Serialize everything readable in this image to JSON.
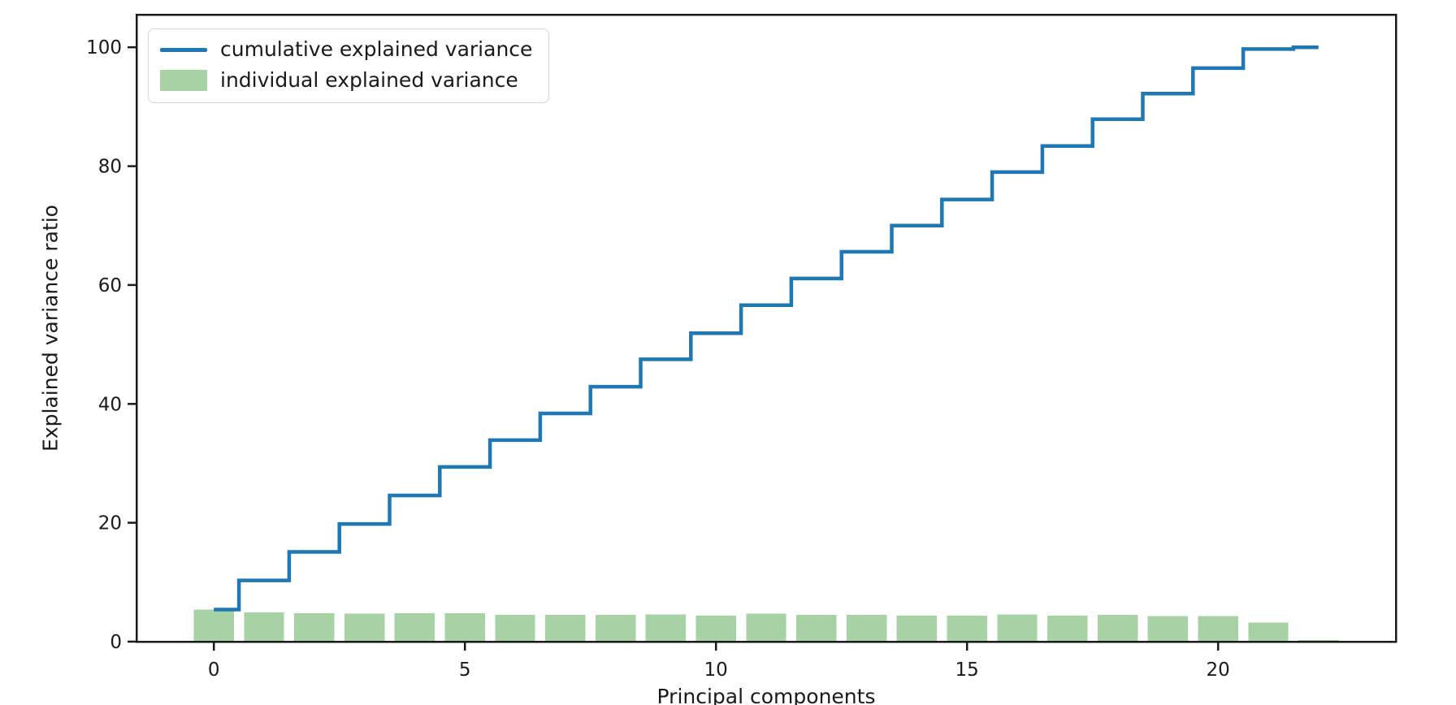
{
  "chart_data": {
    "type": "bar+line",
    "x": [
      0,
      1,
      2,
      3,
      4,
      5,
      6,
      7,
      8,
      9,
      10,
      11,
      12,
      13,
      14,
      15,
      16,
      17,
      18,
      19,
      20,
      21,
      22
    ],
    "series": [
      {
        "name": "cumulative explained variance",
        "type": "line",
        "style": "step-mid",
        "color": "#1f77b4",
        "values": [
          5.4,
          10.3,
          15.1,
          19.8,
          24.6,
          29.4,
          33.9,
          38.4,
          42.9,
          47.5,
          51.9,
          56.6,
          61.1,
          65.6,
          70.0,
          74.4,
          79.0,
          83.4,
          87.9,
          92.2,
          96.5,
          99.7,
          100.0
        ]
      },
      {
        "name": "individual explained variance",
        "type": "bar",
        "color": "#a6d2a6",
        "bar_width": 0.8,
        "values": [
          5.4,
          4.9,
          4.8,
          4.7,
          4.8,
          4.8,
          4.5,
          4.5,
          4.5,
          4.6,
          4.4,
          4.7,
          4.5,
          4.5,
          4.4,
          4.4,
          4.6,
          4.4,
          4.5,
          4.3,
          4.3,
          3.2,
          0.3
        ]
      }
    ],
    "title": "",
    "xlabel": "Principal components",
    "ylabel": "Explained variance ratio",
    "xlim": [
      -1.54,
      23.54
    ],
    "ylim": [
      0,
      105.5
    ],
    "xticks": [
      0,
      5,
      10,
      15,
      20
    ],
    "yticks": [
      0,
      20,
      40,
      60,
      80,
      100
    ],
    "grid": false,
    "legend_position": "upper left",
    "axis_color": "#1a1a1a",
    "tick_font_px": 23,
    "label_font_px": 25
  }
}
